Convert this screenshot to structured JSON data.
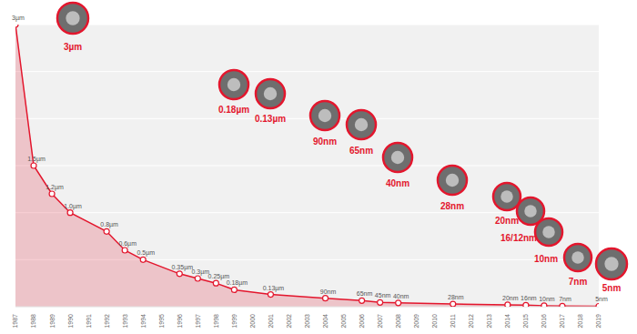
{
  "chart_data": {
    "type": "area",
    "x": [
      1987,
      1988,
      1989,
      1990,
      1992,
      1993,
      1994,
      1996,
      1997,
      1998,
      1999,
      2001,
      2004,
      2006,
      2007,
      2008,
      2011,
      2014,
      2015,
      2016,
      2017,
      2019
    ],
    "values": [
      3000,
      1500,
      1200,
      1000,
      800,
      600,
      500,
      350,
      300,
      250,
      180,
      130,
      90,
      65,
      45,
      40,
      28,
      20,
      16,
      10,
      7,
      5
    ],
    "value_labels": [
      "3µm",
      "1.5µm",
      "1.2µm",
      "1.0µm",
      "0.8µm",
      "0.6µm",
      "0.5µm",
      "0.35µm",
      "0.3µm",
      "0.25µm",
      "0.18µm",
      "0.13µm",
      "90nm",
      "65nm",
      "45nm",
      "40nm",
      "28nm",
      "20nm",
      "16nm",
      "10nm",
      "7nm",
      "5nm"
    ],
    "xlim": [
      1987,
      2019
    ],
    "xticks": [
      1987,
      1988,
      1989,
      1990,
      1991,
      1992,
      1993,
      1994,
      1995,
      1996,
      1997,
      1998,
      1999,
      2000,
      2001,
      2002,
      2003,
      2004,
      2005,
      2006,
      2007,
      2008,
      2009,
      2010,
      2011,
      2012,
      2013,
      2014,
      2015,
      2016,
      2017,
      2018,
      2019
    ],
    "ylim": [
      0,
      3000
    ],
    "yticks": [
      0,
      500,
      1000,
      1500,
      2000,
      2500,
      3000
    ],
    "color": "#e3162d",
    "marker": "circle",
    "grid": true,
    "data_labels": true,
    "tick_labels": "x",
    "annotations": [
      "3µm",
      "0.18µm",
      "0.13µm",
      "90nm",
      "65nm",
      "40nm",
      "28nm",
      "20nm",
      "16/12nm",
      "10nm",
      "7nm",
      "5nm"
    ]
  }
}
